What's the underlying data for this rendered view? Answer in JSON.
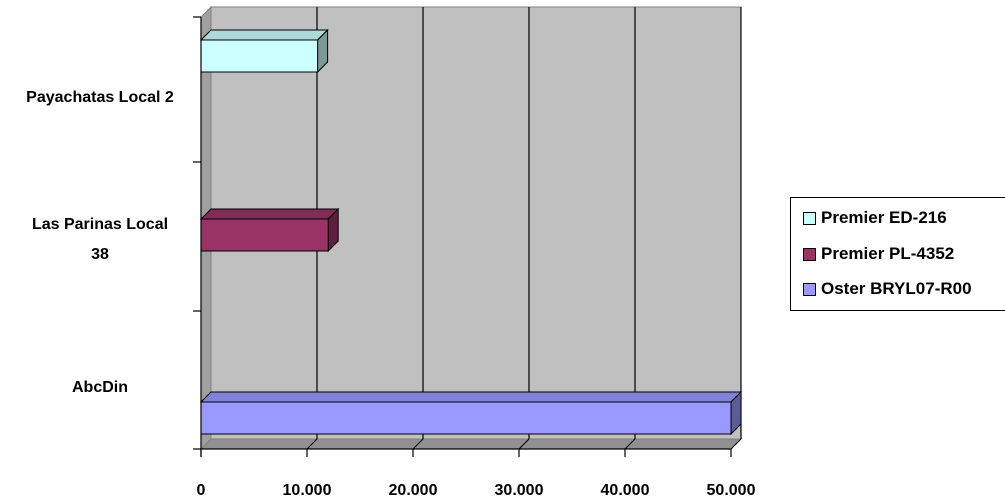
{
  "chart_data": {
    "type": "bar",
    "orientation": "horizontal",
    "three_d": true,
    "categories": [
      "AbcDin",
      "Las Parinas Local 38",
      "Payachatas Local 2"
    ],
    "category_label_lines": [
      [
        "AbcDin"
      ],
      [
        "Las Parinas Local",
        "38"
      ],
      [
        "Payachatas Local 2"
      ]
    ],
    "series": [
      {
        "name": "Oster BRYL07-R00",
        "values": [
          50000,
          null,
          null
        ],
        "color": "#9999ff"
      },
      {
        "name": "Premier PL-4352",
        "values": [
          null,
          12000,
          null
        ],
        "color": "#993366"
      },
      {
        "name": "Premier ED-216",
        "values": [
          null,
          null,
          11000
        ],
        "color": "#ccffff"
      }
    ],
    "legend_order": [
      "Premier ED-216",
      "Premier PL-4352",
      "Oster BRYL07-R00"
    ],
    "xlim": [
      0,
      50000
    ],
    "x_ticks": [
      0,
      10000,
      20000,
      30000,
      40000,
      50000
    ],
    "x_tick_labels": [
      "0",
      "10.000",
      "20.000",
      "30.000",
      "40.000",
      "50.000"
    ],
    "grid": true,
    "legend_position": "right",
    "plot_color": "#c0c0c0"
  }
}
